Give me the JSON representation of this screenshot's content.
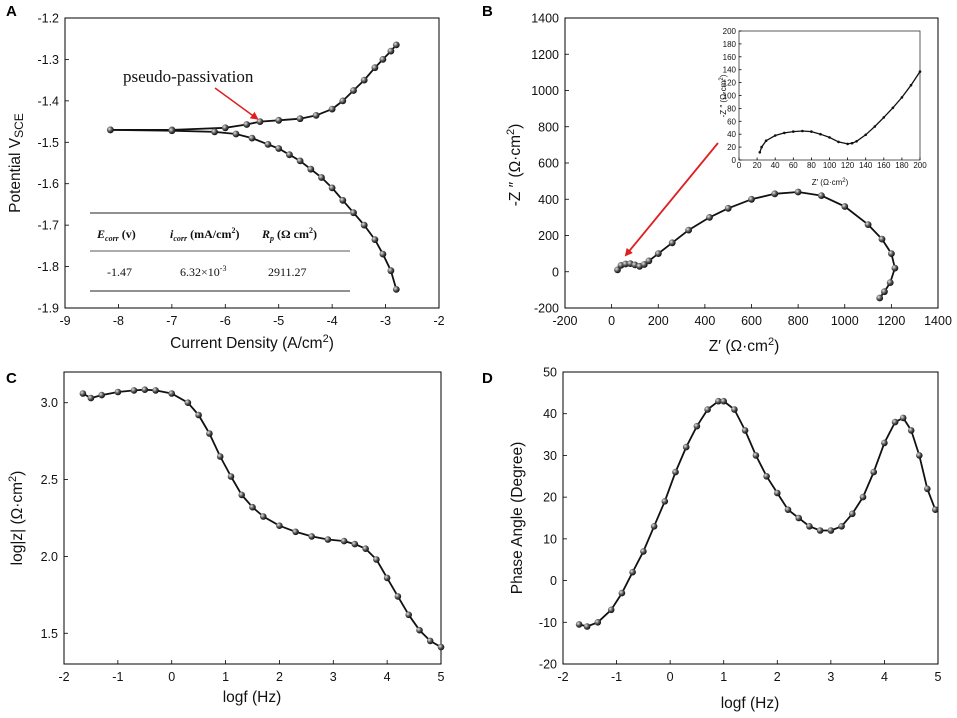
{
  "chart_data": [
    {
      "panel": "A",
      "type": "line",
      "xlabel": "Current Density (A/cm",
      "xlabel_sup": "2",
      "xlabel_end": ")",
      "ylabel": "Potential V",
      "ylabel_sub": "SCE",
      "xlim": [
        -9,
        -2
      ],
      "ylim": [
        -1.9,
        -1.2
      ],
      "xticks": [
        "-9",
        "-8",
        "-7",
        "-6",
        "-5",
        "-4",
        "-3",
        "-2"
      ],
      "yticks": [
        "-1.9",
        "-1.8",
        "-1.7",
        "-1.6",
        "-1.5",
        "-1.4",
        "-1.3",
        "-1.2"
      ],
      "annotation": "pseudo-passivation",
      "annotation_point": [
        -5.35,
        -1.45
      ],
      "series": [
        {
          "name": "anodic",
          "x": [
            -8.15,
            -7.0,
            -6.0,
            -5.6,
            -5.35,
            -5.0,
            -4.6,
            -4.3,
            -4.0,
            -3.8,
            -3.6,
            -3.4,
            -3.2,
            -3.05,
            -2.9,
            -2.8
          ],
          "y": [
            -1.47,
            -1.47,
            -1.465,
            -1.457,
            -1.45,
            -1.447,
            -1.443,
            -1.435,
            -1.42,
            -1.4,
            -1.375,
            -1.35,
            -1.32,
            -1.3,
            -1.28,
            -1.265
          ]
        },
        {
          "name": "cathodic",
          "x": [
            -8.15,
            -7.0,
            -6.2,
            -5.8,
            -5.5,
            -5.2,
            -5.0,
            -4.8,
            -4.6,
            -4.4,
            -4.2,
            -4.0,
            -3.8,
            -3.6,
            -3.4,
            -3.2,
            -3.05,
            -2.9,
            -2.8
          ],
          "y": [
            -1.47,
            -1.472,
            -1.475,
            -1.48,
            -1.49,
            -1.505,
            -1.515,
            -1.53,
            -1.545,
            -1.565,
            -1.585,
            -1.61,
            -1.64,
            -1.67,
            -1.7,
            -1.735,
            -1.77,
            -1.81,
            -1.855
          ]
        }
      ],
      "table": {
        "headers": [
          {
            "sym": "E",
            "sub": "corr",
            "rest": " (v)"
          },
          {
            "sym": "i",
            "sub": "corr",
            "rest": " (mA/cm",
            "sup": "2",
            "end": ")"
          },
          {
            "sym": "R",
            "sub": "p",
            "rest": " (Ω cm",
            "sup": "2",
            "end": ")"
          }
        ],
        "row": {
          "ecorr": "-1.47",
          "icorr": "6.32×10",
          "icorr_exp": "-3",
          "rp": "2911.27"
        }
      }
    },
    {
      "panel": "B",
      "type": "line",
      "xlabel": "Z′  (Ω·cm",
      "xlabel_sup": "2",
      "xlabel_end": ")",
      "ylabel": "-Z ″  (Ω·cm",
      "ylabel_sup": "2",
      "ylabel_end": ")",
      "xlim": [
        -200,
        1400
      ],
      "ylim": [
        -200,
        1400
      ],
      "xticks": [
        "-200",
        "0",
        "200",
        "400",
        "600",
        "800",
        "1000",
        "1200",
        "1400"
      ],
      "yticks": [
        "-200",
        "0",
        "200",
        "400",
        "600",
        "800",
        "1000",
        "1200",
        "1400"
      ],
      "series": [
        {
          "name": "nyquist",
          "x": [
            25,
            40,
            60,
            80,
            100,
            120,
            140,
            160,
            200,
            260,
            330,
            420,
            500,
            600,
            700,
            800,
            900,
            1000,
            1100,
            1160,
            1200,
            1215,
            1195,
            1170,
            1150
          ],
          "y": [
            10,
            35,
            43,
            45,
            38,
            30,
            40,
            60,
            100,
            160,
            230,
            300,
            350,
            400,
            430,
            440,
            420,
            360,
            260,
            180,
            100,
            20,
            -60,
            -110,
            -145
          ]
        }
      ],
      "inset": {
        "xlim": [
          0,
          200
        ],
        "ylim": [
          0,
          200
        ],
        "xticks": [
          "0",
          "20",
          "40",
          "60",
          "80",
          "100",
          "120",
          "140",
          "160",
          "180",
          "200"
        ],
        "yticks": [
          "0",
          "20",
          "40",
          "60",
          "80",
          "100",
          "120",
          "140",
          "160",
          "180",
          "200"
        ],
        "xlabel": "Z′  (Ω·cm",
        "xlabel_sup": "2",
        "xlabel_end": ")",
        "ylabel": "-Z ″  (Ω·cm",
        "ylabel_sup": "2",
        "ylabel_end": ")",
        "x": [
          23,
          25,
          30,
          40,
          50,
          60,
          70,
          80,
          90,
          100,
          110,
          120,
          125,
          130,
          140,
          150,
          160,
          170,
          180,
          190,
          200
        ],
        "y": [
          12,
          20,
          30,
          38,
          42,
          44,
          45,
          44,
          40,
          35,
          28,
          25,
          26,
          29,
          39,
          52,
          66,
          81,
          97,
          116,
          137
        ]
      }
    },
    {
      "panel": "C",
      "type": "line",
      "xlabel": "logf (Hz)",
      "ylabel": "log|z| (Ω·cm",
      "ylabel_sup": "2",
      "ylabel_end": ")",
      "xlim": [
        -2,
        5
      ],
      "ylim": [
        1.3,
        3.2
      ],
      "xticks": [
        "-2",
        "-1",
        "0",
        "1",
        "2",
        "3",
        "4",
        "5"
      ],
      "yticks": [
        "1.5",
        "2.0",
        "2.5",
        "3.0"
      ],
      "ytick_values": [
        1.5,
        2.0,
        2.5,
        3.0
      ],
      "series": [
        {
          "name": "bode-mag",
          "x": [
            -1.65,
            -1.5,
            -1.3,
            -1.0,
            -0.7,
            -0.5,
            -0.3,
            0.0,
            0.3,
            0.5,
            0.7,
            0.9,
            1.1,
            1.3,
            1.5,
            1.7,
            2.0,
            2.3,
            2.6,
            2.9,
            3.2,
            3.4,
            3.6,
            3.8,
            4.0,
            4.2,
            4.4,
            4.6,
            4.8,
            5.0
          ],
          "y": [
            3.06,
            3.03,
            3.05,
            3.07,
            3.08,
            3.085,
            3.08,
            3.06,
            3.0,
            2.92,
            2.8,
            2.65,
            2.52,
            2.4,
            2.32,
            2.26,
            2.2,
            2.16,
            2.13,
            2.11,
            2.1,
            2.08,
            2.05,
            1.98,
            1.86,
            1.74,
            1.62,
            1.52,
            1.45,
            1.41
          ]
        }
      ]
    },
    {
      "panel": "D",
      "type": "line",
      "xlabel": "logf (Hz)",
      "ylabel": "Phase Angle (Degree)",
      "xlim": [
        -2,
        5
      ],
      "ylim": [
        -20,
        50
      ],
      "xticks": [
        "-2",
        "-1",
        "0",
        "1",
        "2",
        "3",
        "4",
        "5"
      ],
      "yticks": [
        "-20",
        "-10",
        "0",
        "10",
        "20",
        "30",
        "40",
        "50"
      ],
      "series": [
        {
          "name": "bode-phase",
          "x": [
            -1.7,
            -1.55,
            -1.35,
            -1.1,
            -0.9,
            -0.7,
            -0.5,
            -0.3,
            -0.1,
            0.1,
            0.3,
            0.5,
            0.7,
            0.9,
            1.0,
            1.2,
            1.4,
            1.6,
            1.8,
            2.0,
            2.2,
            2.4,
            2.6,
            2.8,
            3.0,
            3.2,
            3.4,
            3.6,
            3.8,
            4.0,
            4.2,
            4.35,
            4.5,
            4.65,
            4.8,
            4.95
          ],
          "y": [
            -10.5,
            -11,
            -10,
            -7,
            -3,
            2,
            7,
            13,
            19,
            26,
            32,
            37,
            41,
            43,
            43,
            41,
            36,
            30,
            25,
            21,
            17,
            15,
            13,
            12,
            12,
            13,
            16,
            20,
            26,
            33,
            38,
            39,
            36,
            30,
            22,
            17
          ]
        }
      ]
    }
  ],
  "panel_labels": [
    "A",
    "B",
    "C",
    "D"
  ]
}
